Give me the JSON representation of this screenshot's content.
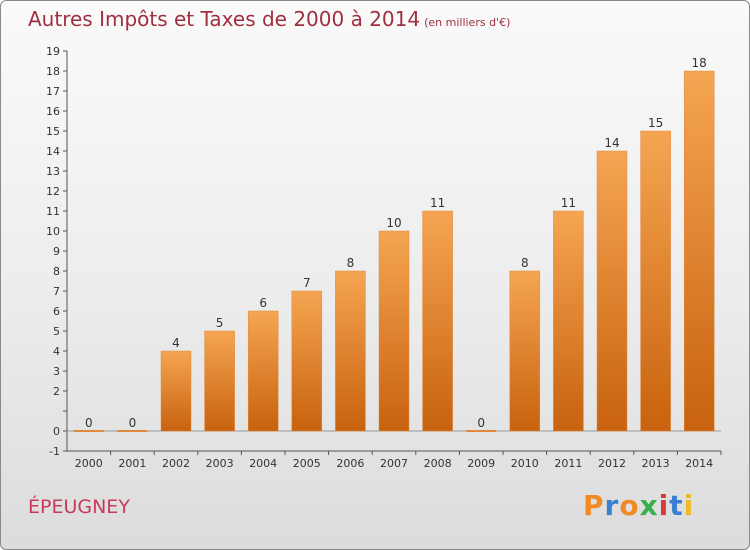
{
  "title": "Autres Impôts et Taxes de 2000 à 2014",
  "unit_note": "(en milliers d'€)",
  "location": "ÉPEUGNEY",
  "logo": {
    "text": "Proxiti",
    "letters": [
      "P",
      "r",
      "o",
      "x",
      "i",
      "t",
      "i"
    ],
    "colors": [
      "#f08a24",
      "#3a7fd0",
      "#f08a24",
      "#3ab04a",
      "#d63a3a",
      "#3a7fd0",
      "#f0b824"
    ]
  },
  "colors": {
    "bar_top": "#f5a552",
    "bar_bottom": "#c8620e",
    "title": "#a03040",
    "location": "#c83a5a"
  },
  "chart_data": {
    "type": "bar",
    "title": "Autres Impôts et Taxes de 2000 à 2014",
    "subtitle": "(en milliers d'€)",
    "categories": [
      "2000",
      "2001",
      "2002",
      "2003",
      "2004",
      "2005",
      "2006",
      "2007",
      "2008",
      "2009",
      "2010",
      "2011",
      "2012",
      "2013",
      "2014"
    ],
    "values": [
      0,
      0,
      4,
      5,
      6,
      7,
      8,
      10,
      11,
      0,
      8,
      11,
      14,
      15,
      18
    ],
    "y_ticks": [
      "-1",
      "0",
      "",
      "2",
      "3",
      "4",
      "5",
      "6",
      "7",
      "8",
      "9",
      "10",
      "11",
      "12",
      "13",
      "14",
      "15",
      "16",
      "17",
      "18",
      "19"
    ],
    "ylim": [
      -1,
      19
    ],
    "grid": false,
    "legend": "none"
  }
}
